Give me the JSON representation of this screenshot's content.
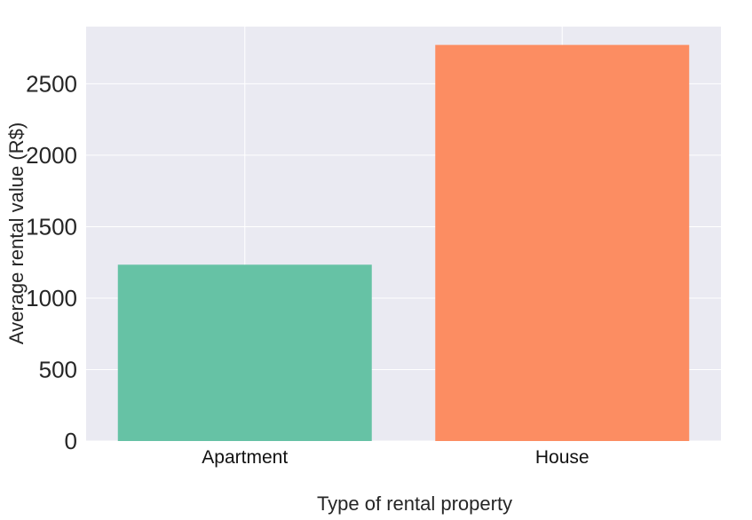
{
  "chart_data": {
    "type": "bar",
    "title": "",
    "xlabel": "Type of rental property",
    "ylabel": "Average rental value (R$)",
    "categories": [
      "Apartment",
      "House"
    ],
    "values": [
      1234,
      2772
    ],
    "colors": [
      "#66c2a5",
      "#fc8d62"
    ],
    "ylim": [
      0,
      2900
    ],
    "yticks": [
      0,
      500,
      1000,
      1500,
      2000,
      2500
    ],
    "grid": true,
    "plot_background": "#eaeaf2",
    "grid_color": "#ffffff"
  }
}
